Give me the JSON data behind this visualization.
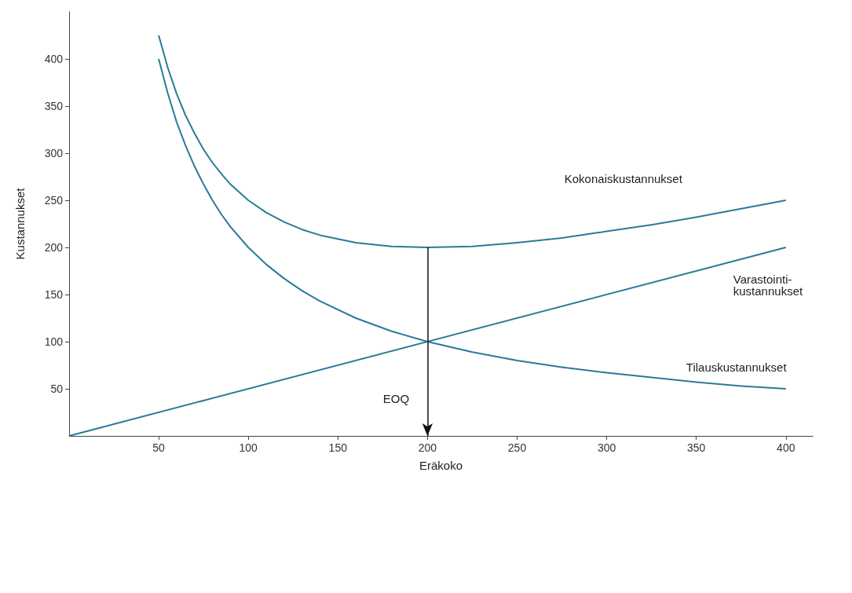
{
  "chart_data": {
    "type": "line",
    "xlabel": "Eräkoko",
    "ylabel": "Kustannukset",
    "xlim": [
      0,
      415
    ],
    "ylim": [
      0,
      450
    ],
    "xticks": [
      50,
      100,
      150,
      200,
      250,
      300,
      350,
      400
    ],
    "yticks": [
      50,
      100,
      150,
      200,
      250,
      300,
      350,
      400
    ],
    "grid": false,
    "legend": false,
    "marker": "none",
    "line_style": "solid",
    "series": [
      {
        "name": "Kokonaiskustannukset",
        "color": "#2b7a98",
        "x": [
          50,
          55,
          60,
          65,
          70,
          75,
          80,
          85,
          90,
          100,
          110,
          120,
          130,
          140,
          160,
          180,
          200,
          225,
          250,
          275,
          300,
          325,
          350,
          375,
          400
        ],
        "values": [
          425,
          391,
          363,
          340,
          321,
          304,
          290,
          278,
          267,
          250,
          237,
          227,
          219,
          213,
          205,
          201,
          200,
          201,
          205,
          210,
          217,
          224,
          232,
          241,
          250
        ]
      },
      {
        "name": "Varastointi-\nkustannukset",
        "color": "#2b7a98",
        "x": [
          0,
          400
        ],
        "values": [
          0,
          200
        ]
      },
      {
        "name": "Tilauskustannukset",
        "color": "#2b7a98",
        "x": [
          50,
          55,
          60,
          65,
          70,
          75,
          80,
          85,
          90,
          100,
          110,
          120,
          130,
          140,
          160,
          180,
          200,
          225,
          250,
          275,
          300,
          325,
          350,
          375,
          400
        ],
        "values": [
          400,
          364,
          333,
          308,
          286,
          267,
          250,
          235,
          222,
          200,
          182,
          167,
          154,
          143,
          125,
          111,
          100,
          89,
          80,
          73,
          67,
          62,
          57,
          53,
          50
        ]
      }
    ],
    "ref_lines": [
      {
        "axis": "x",
        "value": 200,
        "label": "EOQ",
        "color": "#111111"
      }
    ]
  }
}
